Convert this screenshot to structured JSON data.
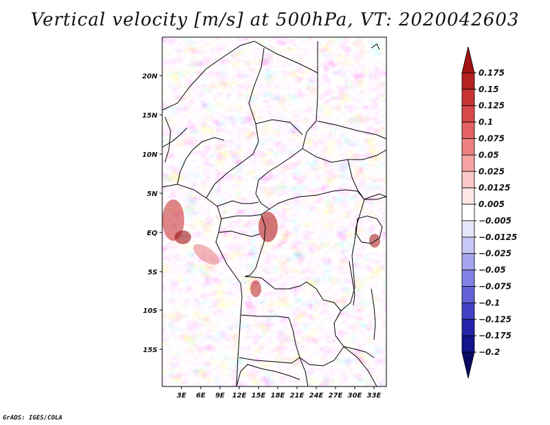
{
  "title": "Vertical velocity [m/s] at 500hPa, VT: 2020042603",
  "credit": "GrADS: IGES/COLA",
  "map": {
    "variable": "Vertical velocity",
    "units": "m/s",
    "level": "500hPa",
    "valid_time": "2020042603",
    "lat_labels": [
      "20N",
      "15N",
      "10N",
      "5N",
      "EQ",
      "5S",
      "10S",
      "15S"
    ],
    "lon_labels": [
      "3E",
      "6E",
      "9E",
      "12E",
      "15E",
      "18E",
      "21E",
      "24E",
      "27E",
      "30E",
      "33E"
    ]
  },
  "colorbar": {
    "labels": [
      "0.175",
      "0.15",
      "0.125",
      "0.1",
      "0.075",
      "0.05",
      "0.025",
      "0.0125",
      "0.005",
      "-0.005",
      "-0.0125",
      "-0.025",
      "-0.05",
      "-0.075",
      "-0.1",
      "-0.125",
      "-0.175",
      "-0.2"
    ],
    "colors": [
      "#a01414",
      "#b42222",
      "#c83434",
      "#d84848",
      "#e46262",
      "#ee8080",
      "#f6a4a4",
      "#fbc8c8",
      "#fde6e6",
      "#ffffff",
      "#e6e6fb",
      "#c8c8f6",
      "#a6a6ee",
      "#8282e4",
      "#6262d6",
      "#4242c4",
      "#2424aa",
      "#14148c",
      "#0a0a64"
    ]
  }
}
